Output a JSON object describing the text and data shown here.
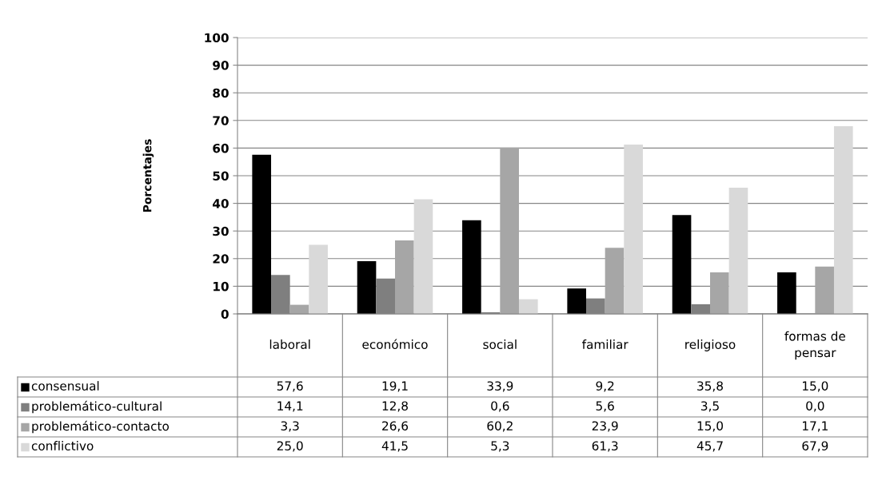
{
  "chart_data": {
    "type": "bar",
    "ylabel": "Porcentajes",
    "categories": [
      "laboral",
      "económico",
      "social",
      "familiar",
      "religioso",
      "formas de pensar"
    ],
    "series": [
      {
        "name": "consensual",
        "color": "#000000",
        "values": [
          57.6,
          19.1,
          33.9,
          9.2,
          35.8,
          15.0
        ],
        "value_labels": [
          "57,6",
          "19,1",
          "33,9",
          "9,2",
          "35,8",
          "15,0"
        ]
      },
      {
        "name": "problemático-cultural",
        "color": "#7f7f7f",
        "values": [
          14.1,
          12.8,
          0.6,
          5.6,
          3.5,
          0.0
        ],
        "value_labels": [
          "14,1",
          "12,8",
          "0,6",
          "5,6",
          "3,5",
          "0,0"
        ]
      },
      {
        "name": "problemático-contacto",
        "color": "#a6a6a6",
        "values": [
          3.3,
          26.6,
          60.2,
          23.9,
          15.0,
          17.1
        ],
        "value_labels": [
          "3,3",
          "26,6",
          "60,2",
          "23,9",
          "15,0",
          "17,1"
        ]
      },
      {
        "name": "conflictivo",
        "color": "#d9d9d9",
        "values": [
          25.0,
          41.5,
          5.3,
          61.3,
          45.7,
          67.9
        ],
        "value_labels": [
          "25,0",
          "41,5",
          "5,3",
          "61,3",
          "45,7",
          "67,9"
        ]
      }
    ],
    "ylim": [
      0,
      100
    ],
    "yticks": [
      0,
      10,
      20,
      30,
      40,
      50,
      60,
      70,
      80,
      90,
      100
    ],
    "grid": "y",
    "legend": "bottom"
  }
}
